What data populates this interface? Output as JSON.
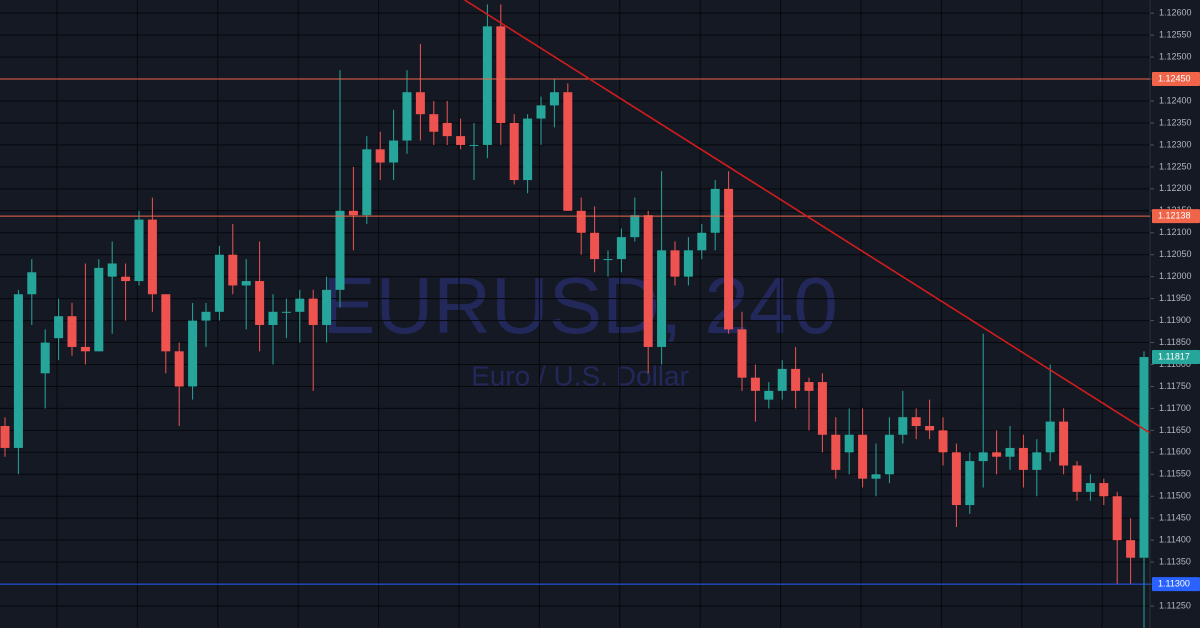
{
  "chart_data": {
    "type": "candlestick",
    "watermark": "EURUSD, 240",
    "watermark_subtitle": "Euro / U.S. Dollar",
    "up_color": "#26a69a",
    "down_color": "#ef5350",
    "open": [
      1.1166,
      1.1161,
      1.1196,
      1.1178,
      1.1186,
      1.1191,
      1.1184,
      1.1183,
      1.12,
      1.12,
      1.1199,
      1.1213,
      1.1196,
      1.1183,
      1.1175,
      1.119,
      1.1192,
      1.1205,
      1.1198,
      1.1199,
      1.1189,
      1.1192,
      1.1192,
      1.1195,
      1.1189,
      1.1197,
      1.1215,
      1.1214,
      1.1229,
      1.1226,
      1.1231,
      1.1242,
      1.1237,
      1.1235,
      1.1232,
      1.123,
      1.123,
      1.1257,
      1.1235,
      1.1222,
      1.1236,
      1.1239,
      1.1242,
      1.1215,
      1.121,
      1.1204,
      1.1204,
      1.1209,
      1.1214,
      1.1184,
      1.1206,
      1.12,
      1.1206,
      1.121,
      1.122,
      1.1188,
      1.1177,
      1.1172,
      1.1174,
      1.1179,
      1.1176,
      1.1176,
      1.1164,
      1.116,
      1.1164,
      1.1154,
      1.1155,
      1.1164,
      1.1168,
      1.1166,
      1.1165,
      1.116,
      1.1148,
      1.1158,
      1.116,
      1.1159,
      1.1161,
      1.1156,
      1.116,
      1.1167,
      1.1157,
      1.1151,
      1.1153,
      1.115,
      1.114,
      1.1136
    ],
    "high": [
      1.1168,
      1.1197,
      1.1204,
      1.1188,
      1.1195,
      1.1194,
      1.1203,
      1.1204,
      1.1208,
      1.1203,
      1.1215,
      1.1218,
      1.1196,
      1.1185,
      1.1194,
      1.1194,
      1.1207,
      1.1212,
      1.1204,
      1.1208,
      1.1196,
      1.1195,
      1.1197,
      1.1197,
      1.12,
      1.1247,
      1.1225,
      1.1232,
      1.1233,
      1.1238,
      1.1247,
      1.1253,
      1.124,
      1.124,
      1.1236,
      1.1235,
      1.1262,
      1.1262,
      1.1237,
      1.1237,
      1.1241,
      1.1245,
      1.1244,
      1.1218,
      1.1216,
      1.1206,
      1.1211,
      1.1218,
      1.1215,
      1.1224,
      1.1208,
      1.1209,
      1.1212,
      1.1222,
      1.1224,
      1.1192,
      1.118,
      1.1176,
      1.1181,
      1.1184,
      1.1177,
      1.1178,
      1.1168,
      1.117,
      1.117,
      1.1162,
      1.1168,
      1.1174,
      1.117,
      1.1172,
      1.1168,
      1.1162,
      1.116,
      1.1187,
      1.1165,
      1.1166,
      1.1164,
      1.1163,
      1.118,
      1.117,
      1.1158,
      1.1155,
      1.1154,
      1.1151,
      1.1145,
      1.1183
    ],
    "low": [
      1.1159,
      1.1155,
      1.1189,
      1.117,
      1.1181,
      1.1182,
      1.118,
      1.1183,
      1.1187,
      1.119,
      1.1198,
      1.1192,
      1.1178,
      1.1166,
      1.1172,
      1.1184,
      1.119,
      1.1196,
      1.1188,
      1.1183,
      1.118,
      1.1186,
      1.1185,
      1.1174,
      1.1185,
      1.1193,
      1.1206,
      1.1212,
      1.1222,
      1.1222,
      1.1228,
      1.1231,
      1.123,
      1.123,
      1.1229,
      1.1222,
      1.1227,
      1.123,
      1.1221,
      1.1219,
      1.123,
      1.1234,
      1.1215,
      1.1205,
      1.1201,
      1.12,
      1.1201,
      1.1208,
      1.1178,
      1.118,
      1.1198,
      1.1198,
      1.1204,
      1.1206,
      1.1187,
      1.1174,
      1.1167,
      1.117,
      1.1172,
      1.117,
      1.1165,
      1.116,
      1.1154,
      1.1155,
      1.1152,
      1.115,
      1.1153,
      1.1162,
      1.1163,
      1.1163,
      1.1157,
      1.1143,
      1.1146,
      1.1152,
      1.1155,
      1.1156,
      1.1152,
      1.115,
      1.1158,
      1.1155,
      1.1149,
      1.1149,
      1.1148,
      1.113,
      1.113,
      1.112
    ],
    "close": [
      1.1161,
      1.1196,
      1.1201,
      1.1185,
      1.1191,
      1.1184,
      1.1183,
      1.1202,
      1.1203,
      1.1199,
      1.1213,
      1.1196,
      1.1183,
      1.1175,
      1.119,
      1.1192,
      1.1205,
      1.1198,
      1.1199,
      1.1189,
      1.1192,
      1.1192,
      1.1195,
      1.1189,
      1.1197,
      1.1215,
      1.1214,
      1.1229,
      1.1226,
      1.1231,
      1.1242,
      1.1237,
      1.1233,
      1.1232,
      1.123,
      1.123,
      1.1257,
      1.1235,
      1.1222,
      1.1236,
      1.1239,
      1.1242,
      1.1215,
      1.121,
      1.1204,
      1.1204,
      1.1209,
      1.1214,
      1.1184,
      1.1206,
      1.12,
      1.1206,
      1.121,
      1.122,
      1.1188,
      1.1177,
      1.1174,
      1.1174,
      1.1179,
      1.1174,
      1.1174,
      1.1164,
      1.1156,
      1.1164,
      1.1154,
      1.1155,
      1.1164,
      1.1168,
      1.1166,
      1.1165,
      1.116,
      1.1148,
      1.1158,
      1.116,
      1.1159,
      1.1161,
      1.1156,
      1.116,
      1.1167,
      1.1157,
      1.1151,
      1.1153,
      1.115,
      1.114,
      1.1136,
      1.11817
    ],
    "ylim": [
      1.112,
      1.1263
    ],
    "yticks": [
      {
        "value": 1.126,
        "label": "1.12600"
      },
      {
        "value": 1.1255,
        "label": "1.12550"
      },
      {
        "value": 1.125,
        "label": "1.12500"
      },
      {
        "value": 1.1245,
        "label": "1.12450"
      },
      {
        "value": 1.124,
        "label": "1.12400"
      },
      {
        "value": 1.1235,
        "label": "1.12350"
      },
      {
        "value": 1.123,
        "label": "1.12300"
      },
      {
        "value": 1.1225,
        "label": "1.12250"
      },
      {
        "value": 1.122,
        "label": "1.12200"
      },
      {
        "value": 1.1215,
        "label": "1.12150"
      },
      {
        "value": 1.121,
        "label": "1.12100"
      },
      {
        "value": 1.1205,
        "label": "1.12050"
      },
      {
        "value": 1.12,
        "label": "1.12000"
      },
      {
        "value": 1.1195,
        "label": "1.11950"
      },
      {
        "value": 1.119,
        "label": "1.11900"
      },
      {
        "value": 1.1185,
        "label": "1.11850"
      },
      {
        "value": 1.118,
        "label": "1.11800"
      },
      {
        "value": 1.1175,
        "label": "1.11750"
      },
      {
        "value": 1.117,
        "label": "1.11700"
      },
      {
        "value": 1.1165,
        "label": "1.11650"
      },
      {
        "value": 1.116,
        "label": "1.11600"
      },
      {
        "value": 1.1155,
        "label": "1.11550"
      },
      {
        "value": 1.115,
        "label": "1.11500"
      },
      {
        "value": 1.1145,
        "label": "1.11450"
      },
      {
        "value": 1.114,
        "label": "1.11400"
      },
      {
        "value": 1.1135,
        "label": "1.11350"
      },
      {
        "value": 1.113,
        "label": "1.11300"
      },
      {
        "value": 1.1125,
        "label": "1.11250"
      }
    ],
    "grid": true,
    "levels": [
      {
        "value": 1.1245,
        "label": "1.12450",
        "color": "#f0644a"
      },
      {
        "value": 1.12138,
        "label": "1.12138",
        "color": "#f0644a"
      },
      {
        "value": 1.113,
        "label": "1.11300",
        "color": "#2962ff"
      }
    ],
    "last_price": {
      "value": 1.11817,
      "label": "1.11817"
    },
    "trendline": {
      "x": [
        34.3,
        85.4
      ],
      "y": [
        1.1263,
        1.11645
      ],
      "color": "#d21c1c"
    }
  }
}
